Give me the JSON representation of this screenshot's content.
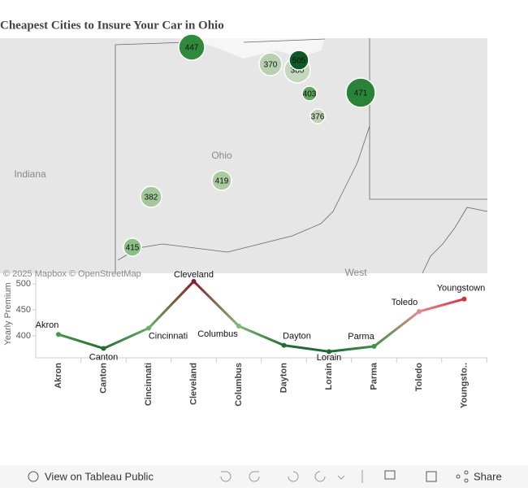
{
  "chart_data": [
    {
      "type": "line",
      "title": "Cheapest Cities to Insure Your Car in Ohio",
      "y_label": "Yearly Premium",
      "categories": [
        "Akron",
        "Canton",
        "Cincinnati",
        "Cleveland",
        "Columbus",
        "Dayton",
        "Lorain",
        "Parma",
        "Toledo",
        "Youngstown"
      ],
      "category_axis_labels": [
        "Akron",
        "Canton",
        "Cincinnati",
        "Cleveland",
        "Columbus",
        "Dayton",
        "Lorain",
        "Parma",
        "Toledo",
        "Youngsto.."
      ],
      "values": [
        403,
        376,
        415,
        505,
        419,
        382,
        370,
        380,
        447,
        471
      ],
      "colors": [
        "#3f9a4a",
        "#1e6e30",
        "#6aaf62",
        "#8b1a2a",
        "#7dba72",
        "#1e6e30",
        "#1a6a2e",
        "#3a9347",
        "#e8858a",
        "#d8323c"
      ],
      "ylim": [
        358,
        519
      ],
      "yticks": [
        400,
        450,
        500
      ]
    },
    {
      "type": "map",
      "map_labels": [
        "Indiana",
        "Ohio",
        "West"
      ],
      "attribution": "© 2025 Mapbox © OpenStreetMap",
      "bubble_colors": [
        "#5ea862",
        "#bcd3b5",
        "#8cbf85",
        "#0d5a24",
        "#a9cba1",
        "#a4c89c",
        "#b7d1b0",
        "#c4d8bd",
        "#2f8a3c",
        "#2a8438"
      ]
    }
  ],
  "toolbar": {
    "view": "View on Tableau Public",
    "share": "Share"
  }
}
